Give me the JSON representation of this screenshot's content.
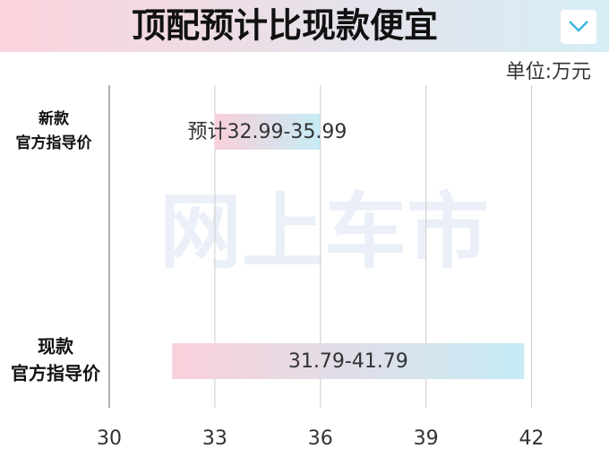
{
  "chart_data": {
    "type": "range-bar",
    "title": "顶配预计比现款便宜",
    "unit_label": "单位:万元",
    "watermark": "网上车市",
    "categories": [
      [
        "新款",
        "官方指导价"
      ],
      [
        "现款",
        "官方指导价"
      ]
    ],
    "values": [
      [
        32.99,
        35.99
      ],
      [
        31.79,
        41.79
      ]
    ],
    "value_labels": [
      "预计32.99-35.99",
      "31.79-41.79"
    ],
    "colors": [
      "#f9d0da",
      "#c6ebf5"
    ],
    "xlim": [
      30,
      44.2
    ],
    "xticks": [
      30,
      33,
      36,
      39,
      42
    ],
    "grid": true
  }
}
